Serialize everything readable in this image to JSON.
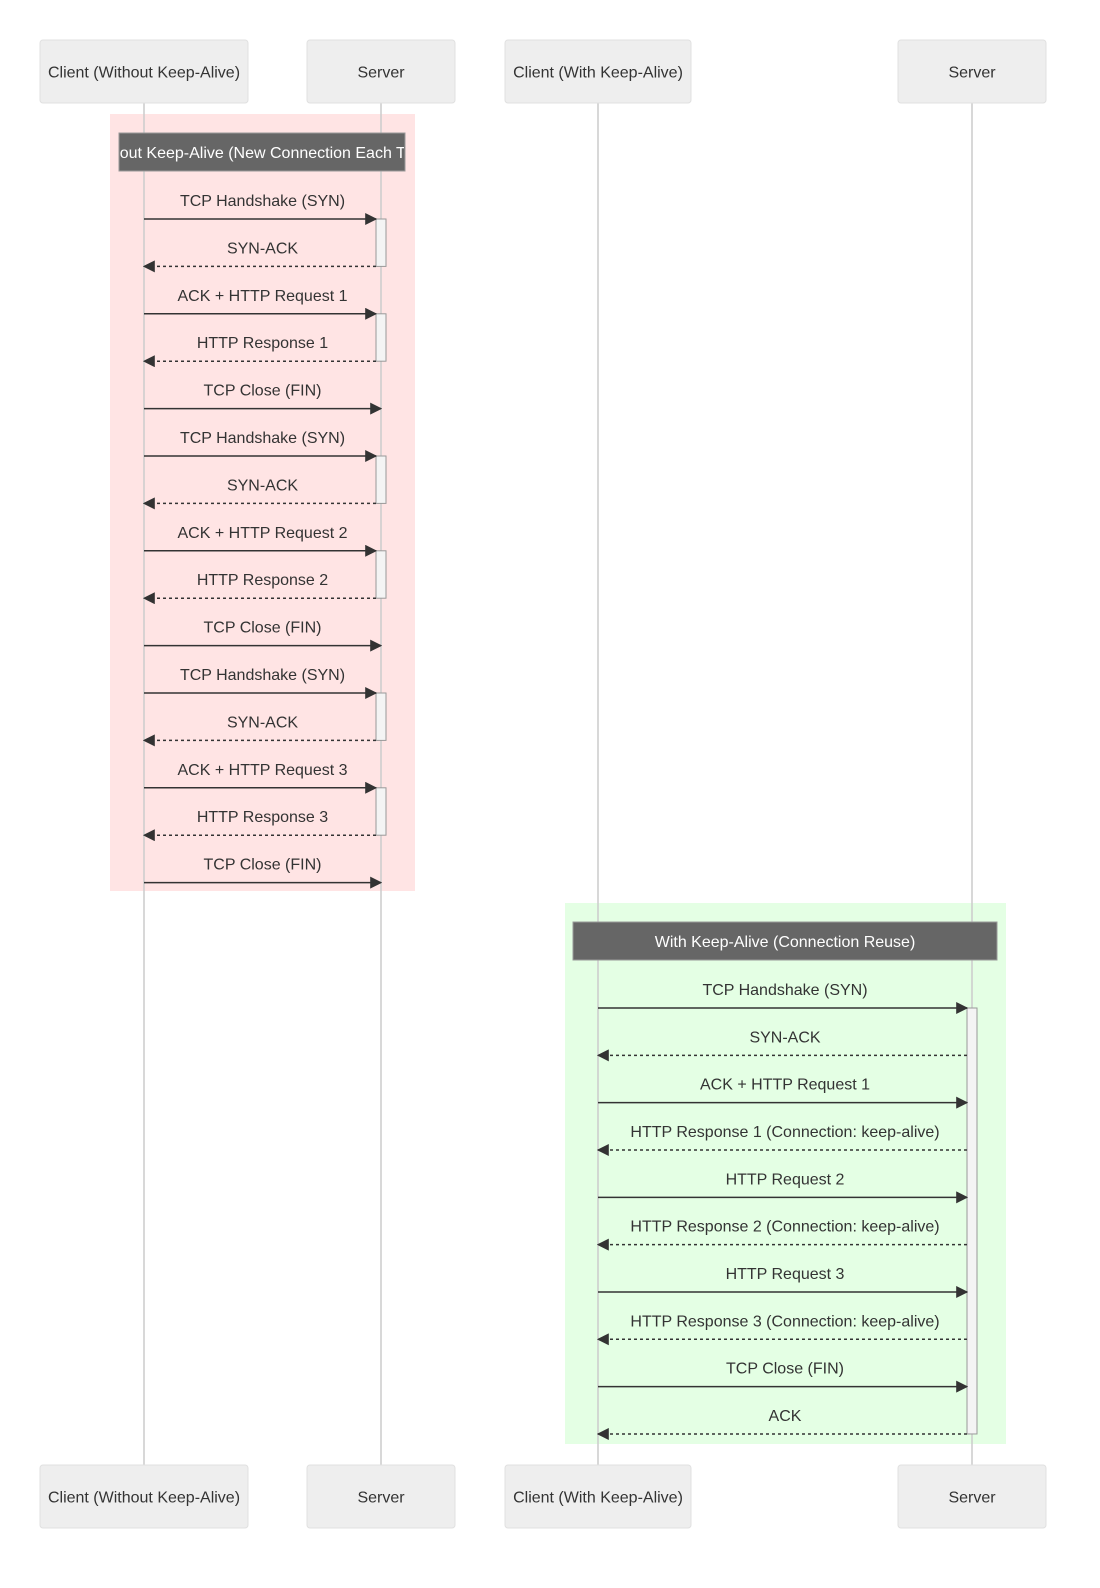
{
  "participants": [
    {
      "id": "c1",
      "label": "Client (Without Keep-Alive)"
    },
    {
      "id": "s1",
      "label": "Server"
    },
    {
      "id": "c2",
      "label": "Client (With Keep-Alive)"
    },
    {
      "id": "s2",
      "label": "Server"
    }
  ],
  "colors": {
    "actor_fill": "#eeeeee",
    "actor_stroke": "#e0e0e0",
    "lifeline": "#cccccc",
    "note_fill": "#666666",
    "note_text": "#ffffff",
    "group_without": "#ffe4e4",
    "group_with": "#e4ffe4",
    "arrow": "#333333",
    "activation_fill": "#f4f4f4",
    "activation_stroke": "#999999"
  },
  "groups": [
    {
      "title": "Without Keep-Alive (New Connection Each Time)",
      "color_key": "group_without",
      "client": "c1",
      "server": "s1",
      "messages": [
        {
          "label": "TCP Handshake (SYN)",
          "dir": "request",
          "activate": true
        },
        {
          "label": "SYN-ACK",
          "dir": "response"
        },
        {
          "label": "ACK + HTTP Request 1",
          "dir": "request",
          "activate": true
        },
        {
          "label": "HTTP Response 1",
          "dir": "response"
        },
        {
          "label": "TCP Close (FIN)",
          "dir": "request"
        },
        {
          "label": "TCP Handshake (SYN)",
          "dir": "request",
          "activate": true
        },
        {
          "label": "SYN-ACK",
          "dir": "response"
        },
        {
          "label": "ACK + HTTP Request 2",
          "dir": "request",
          "activate": true
        },
        {
          "label": "HTTP Response 2",
          "dir": "response"
        },
        {
          "label": "TCP Close (FIN)",
          "dir": "request"
        },
        {
          "label": "TCP Handshake (SYN)",
          "dir": "request",
          "activate": true
        },
        {
          "label": "SYN-ACK",
          "dir": "response"
        },
        {
          "label": "ACK + HTTP Request 3",
          "dir": "request",
          "activate": true
        },
        {
          "label": "HTTP Response 3",
          "dir": "response"
        },
        {
          "label": "TCP Close (FIN)",
          "dir": "request"
        }
      ]
    },
    {
      "title": "With Keep-Alive (Connection Reuse)",
      "color_key": "group_with",
      "client": "c2",
      "server": "s2",
      "messages": [
        {
          "label": "TCP Handshake (SYN)",
          "dir": "request"
        },
        {
          "label": "SYN-ACK",
          "dir": "response"
        },
        {
          "label": "ACK + HTTP Request 1",
          "dir": "request"
        },
        {
          "label": "HTTP Response 1 (Connection: keep-alive)",
          "dir": "response"
        },
        {
          "label": "HTTP Request 2",
          "dir": "request"
        },
        {
          "label": "HTTP Response 2 (Connection: keep-alive)",
          "dir": "response"
        },
        {
          "label": "HTTP Request 3",
          "dir": "request"
        },
        {
          "label": "HTTP Response 3 (Connection: keep-alive)",
          "dir": "response"
        },
        {
          "label": "TCP Close (FIN)",
          "dir": "request"
        },
        {
          "label": "ACK",
          "dir": "response"
        }
      ]
    }
  ]
}
